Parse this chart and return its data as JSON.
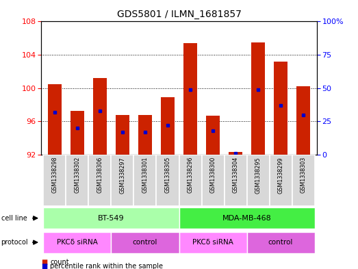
{
  "title": "GDS5801 / ILMN_1681857",
  "samples": [
    "GSM1338298",
    "GSM1338302",
    "GSM1338306",
    "GSM1338297",
    "GSM1338301",
    "GSM1338305",
    "GSM1338296",
    "GSM1338300",
    "GSM1338304",
    "GSM1338295",
    "GSM1338299",
    "GSM1338303"
  ],
  "counts": [
    100.5,
    97.3,
    101.2,
    96.8,
    96.8,
    98.9,
    105.4,
    96.7,
    92.3,
    105.5,
    103.2,
    100.2
  ],
  "percentiles": [
    32,
    20,
    33,
    17,
    17,
    22,
    49,
    18,
    1,
    49,
    37,
    30
  ],
  "y_min": 92,
  "y_max": 108,
  "y_ticks_left": [
    92,
    96,
    100,
    104,
    108
  ],
  "y_ticks_right": [
    0,
    25,
    50,
    75,
    100
  ],
  "cell_line_groups": [
    {
      "label": "BT-549",
      "start": 0,
      "end": 5,
      "color": "#aaffaa"
    },
    {
      "label": "MDA-MB-468",
      "start": 6,
      "end": 11,
      "color": "#44ee44"
    }
  ],
  "protocol_groups": [
    {
      "label": "PKCδ siRNA",
      "start": 0,
      "end": 2,
      "color": "#ff88ff"
    },
    {
      "label": "control",
      "start": 3,
      "end": 5,
      "color": "#dd66dd"
    },
    {
      "label": "PKCδ siRNA",
      "start": 6,
      "end": 8,
      "color": "#ff88ff"
    },
    {
      "label": "control",
      "start": 9,
      "end": 11,
      "color": "#dd66dd"
    }
  ],
  "bar_color": "#cc2200",
  "dot_color": "#0000cc",
  "sample_bg": "#d8d8d8",
  "plot_bg": "#ffffff",
  "fig_bg": "#ffffff"
}
